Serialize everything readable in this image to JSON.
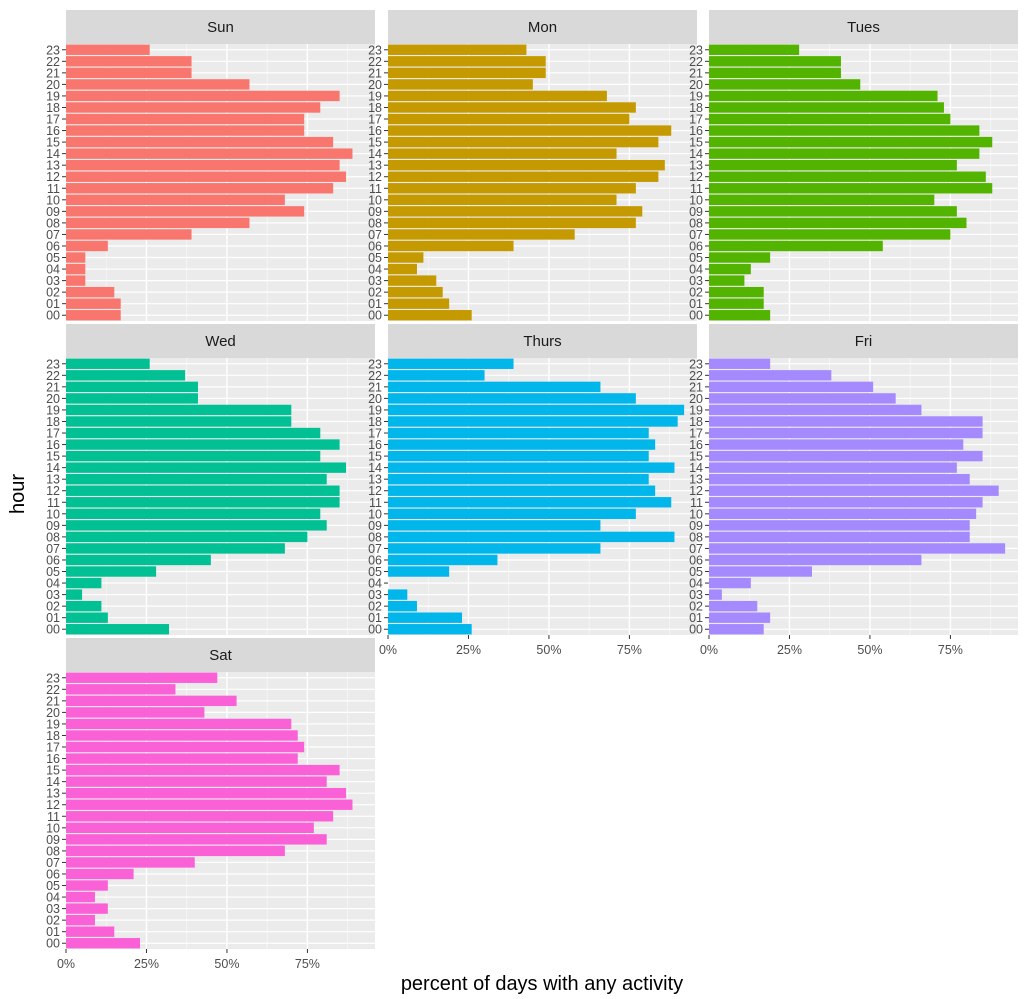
{
  "chart_data": {
    "type": "bar",
    "orientation": "horizontal",
    "facet_layout": "3 columns, facets wrapped left-to-right",
    "xlabel": "percent of days with any activity",
    "ylabel": "hour",
    "xlim": [
      0,
      96
    ],
    "x_ticks": [
      0,
      25,
      50,
      75
    ],
    "x_tick_labels": [
      "0%",
      "25%",
      "50%",
      "75%"
    ],
    "categories": [
      "00",
      "01",
      "02",
      "03",
      "04",
      "05",
      "06",
      "07",
      "08",
      "09",
      "10",
      "11",
      "12",
      "13",
      "14",
      "15",
      "16",
      "17",
      "18",
      "19",
      "20",
      "21",
      "22",
      "23"
    ],
    "series": [
      {
        "name": "Sun",
        "color": "#F8766D",
        "values": [
          17,
          17,
          15,
          6,
          6,
          6,
          13,
          39,
          57,
          74,
          68,
          83,
          87,
          85,
          89,
          83,
          74,
          74,
          79,
          85,
          57,
          39,
          39,
          26
        ]
      },
      {
        "name": "Mon",
        "color": "#C49A00",
        "values": [
          26,
          19,
          17,
          15,
          9,
          11,
          39,
          58,
          77,
          79,
          71,
          77,
          84,
          86,
          71,
          84,
          88,
          75,
          77,
          68,
          45,
          49,
          49,
          43
        ]
      },
      {
        "name": "Tues",
        "color": "#53B400",
        "values": [
          19,
          17,
          17,
          11,
          13,
          19,
          54,
          75,
          80,
          77,
          70,
          88,
          86,
          77,
          84,
          88,
          84,
          75,
          73,
          71,
          47,
          41,
          41,
          28
        ]
      },
      {
        "name": "Wed",
        "color": "#00C094",
        "values": [
          32,
          13,
          11,
          5,
          11,
          28,
          45,
          68,
          75,
          81,
          79,
          85,
          85,
          81,
          87,
          79,
          85,
          79,
          70,
          70,
          41,
          41,
          37,
          26
        ]
      },
      {
        "name": "Thurs",
        "color": "#00B6EB",
        "values": [
          26,
          23,
          9,
          6,
          0,
          19,
          34,
          66,
          89,
          66,
          77,
          88,
          83,
          81,
          89,
          81,
          83,
          81,
          90,
          92,
          77,
          66,
          30,
          39
        ]
      },
      {
        "name": "Fri",
        "color": "#A58AFF",
        "values": [
          17,
          19,
          15,
          4,
          13,
          32,
          66,
          92,
          81,
          81,
          83,
          85,
          90,
          81,
          77,
          85,
          79,
          85,
          85,
          66,
          58,
          51,
          38,
          19
        ]
      },
      {
        "name": "Sat",
        "color": "#FB61D7",
        "values": [
          23,
          15,
          9,
          13,
          9,
          13,
          21,
          40,
          68,
          81,
          77,
          83,
          89,
          87,
          81,
          85,
          72,
          74,
          72,
          70,
          43,
          53,
          34,
          47
        ]
      }
    ]
  }
}
